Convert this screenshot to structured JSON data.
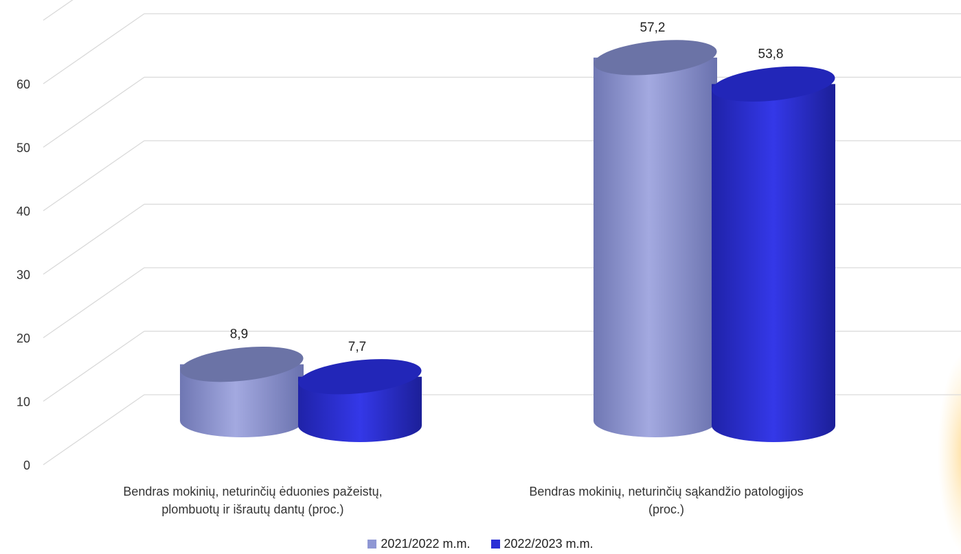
{
  "chart_data": {
    "type": "bar",
    "style": "3d-cylinder",
    "categories": [
      "Bendras mokinių, neturinčių ėduonies pažeistų, plombuotų ir išrautų dantų (proc.)",
      "Bendras mokinių, neturinčių sąkandžio patologijos (proc.)"
    ],
    "categories_lines": [
      [
        "Bendras mokinių, neturinčių ėduonies pažeistų,",
        "plombuotų ir išrautų dantų (proc.)"
      ],
      [
        "Bendras mokinių, neturinčių sąkandžio patologijos",
        "(proc.)"
      ]
    ],
    "series": [
      {
        "name": "2021/2022 m.m.",
        "values": [
          8.9,
          57.2
        ],
        "labels": [
          "8,9",
          "57,2"
        ],
        "color": "#8f97d4"
      },
      {
        "name": "2022/2023 m.m.",
        "values": [
          7.7,
          53.8
        ],
        "labels": [
          "7,7",
          "53,8"
        ],
        "color": "#2b2fd6"
      }
    ],
    "yticks": [
      0,
      10,
      20,
      30,
      40,
      50,
      60
    ],
    "ylim": [
      0,
      70
    ],
    "grid": true,
    "legend": "bottom",
    "gridline_color": "#d9d9d9"
  }
}
